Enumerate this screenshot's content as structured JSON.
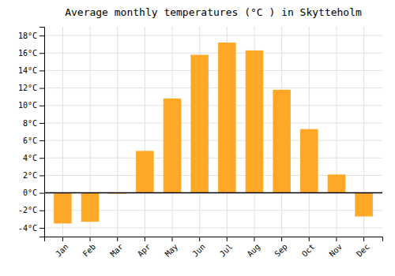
{
  "chart_data": {
    "type": "bar",
    "title": "Average monthly temperatures (°C ) in Skytteholm",
    "categories": [
      "Jan",
      "Feb",
      "Mar",
      "Apr",
      "May",
      "Jun",
      "Jul",
      "Aug",
      "Sep",
      "Oct",
      "Nov",
      "Dec"
    ],
    "values": [
      -3.5,
      -3.3,
      -0.1,
      4.8,
      10.8,
      15.8,
      17.2,
      16.3,
      11.8,
      7.3,
      2.1,
      -2.7
    ],
    "color": "#FFA726",
    "ylim": [
      -5,
      19
    ],
    "yticks": [
      {
        "value": -4,
        "label": "-4°C"
      },
      {
        "value": -2,
        "label": "-2°C"
      },
      {
        "value": 0,
        "label": "0°C"
      },
      {
        "value": 2,
        "label": "2°C"
      },
      {
        "value": 4,
        "label": "4°C"
      },
      {
        "value": 6,
        "label": "6°C"
      },
      {
        "value": 8,
        "label": "8°C"
      },
      {
        "value": 10,
        "label": "10°C"
      },
      {
        "value": 12,
        "label": "12°C"
      },
      {
        "value": 14,
        "label": "14°C"
      },
      {
        "value": 16,
        "label": "16°C"
      },
      {
        "value": 18,
        "label": "18°C"
      }
    ],
    "grid": true
  }
}
